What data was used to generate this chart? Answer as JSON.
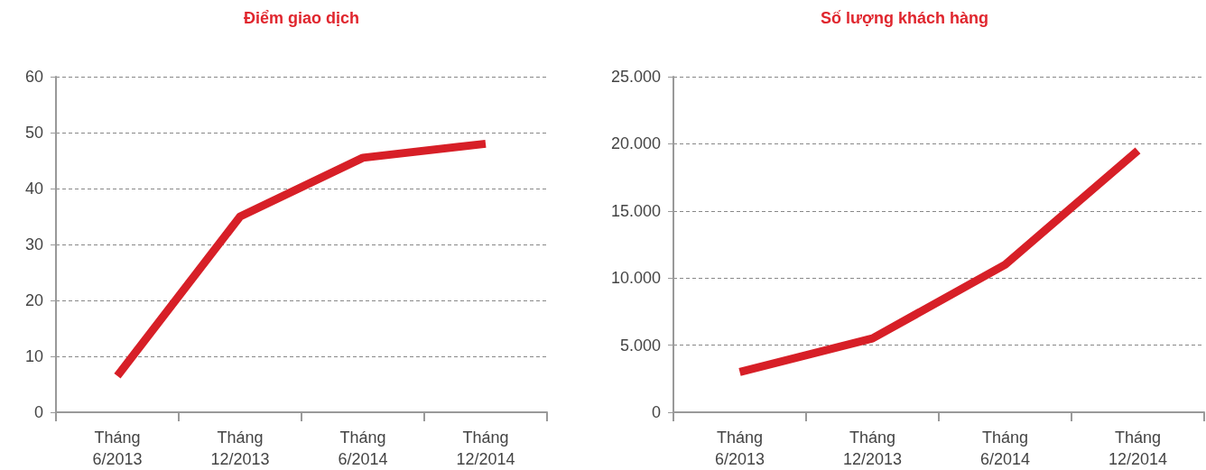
{
  "chart_data": [
    {
      "type": "line",
      "title": "Điểm giao dịch",
      "categories": [
        "Tháng 6/2013",
        "Tháng 12/2013",
        "Tháng 6/2014",
        "Tháng 12/2014"
      ],
      "series": [
        {
          "color": "#d71f27",
          "values": [
            6.5,
            35,
            45.5,
            48
          ]
        }
      ],
      "ylim": [
        0,
        60
      ],
      "yticks": [
        0,
        10,
        20,
        30,
        40,
        50,
        60
      ],
      "grid": "y",
      "marker": "none",
      "line_style": "solid"
    },
    {
      "type": "line",
      "title": "Số lượng khách hàng",
      "categories": [
        "Tháng 6/2013",
        "Tháng 12/2013",
        "Tháng 6/2014",
        "Tháng 12/2014"
      ],
      "series": [
        {
          "color": "#d71f27",
          "values": [
            3000,
            5500,
            11000,
            19500
          ]
        }
      ],
      "ylim": [
        0,
        25000
      ],
      "yticks": [
        0,
        {
          "value": 5000,
          "label": "5.000"
        },
        {
          "value": 10000,
          "label": "10.000"
        },
        {
          "value": 15000,
          "label": "15.000"
        },
        {
          "value": 20000,
          "label": "20.000"
        },
        {
          "value": 25000,
          "label": "25.000"
        }
      ],
      "grid": "y",
      "marker": "none",
      "line_style": "solid"
    }
  ]
}
